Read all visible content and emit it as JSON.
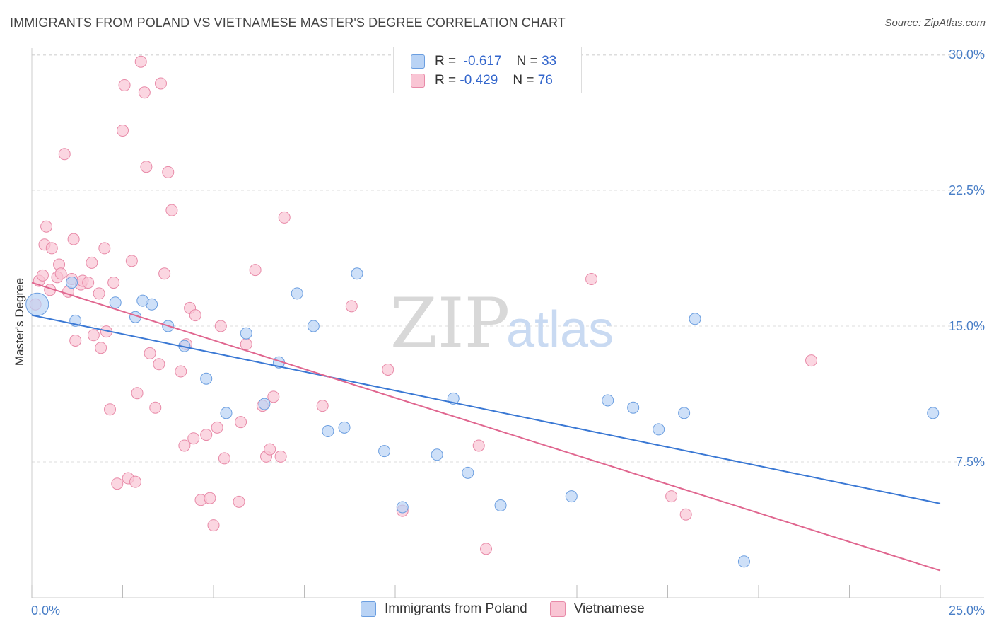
{
  "title": "IMMIGRANTS FROM POLAND VS VIETNAMESE MASTER'S DEGREE CORRELATION CHART",
  "source": "Source: ZipAtlas.com",
  "legend": {
    "series1": {
      "r_label": "R =",
      "r_value": "-0.617",
      "n_label": "N =",
      "n_value": "33"
    },
    "series2": {
      "r_label": "R =",
      "r_value": "-0.429",
      "n_label": "N =",
      "n_value": "76"
    }
  },
  "colors": {
    "series1_fill": "#b9d3f5",
    "series1_stroke": "#6b9ee0",
    "series1_line": "#3a78d4",
    "series2_fill": "#f9c5d4",
    "series2_stroke": "#e88aa8",
    "series2_line": "#e0668f",
    "grid": "#dddddd",
    "axis_text": "#4a7fc7"
  },
  "watermark": {
    "zip": "ZIP",
    "atlas": "atlas"
  },
  "chart_data": {
    "type": "scatter",
    "title": "IMMIGRANTS FROM POLAND VS VIETNAMESE MASTER'S DEGREE CORRELATION CHART",
    "xlabel": "",
    "ylabel": "Master's Degree",
    "xlim": [
      0,
      25
    ],
    "ylim": [
      0,
      30.8
    ],
    "x_tick_labels": [
      "0.0%",
      "25.0%"
    ],
    "y_ticks": [
      7.5,
      15.0,
      22.5,
      30.0
    ],
    "y_tick_labels": [
      "7.5%",
      "15.0%",
      "22.5%",
      "30.0%"
    ],
    "grid": true,
    "legend_position": "bottom",
    "series": [
      {
        "name": "Immigrants from Poland",
        "points": [
          [
            0.15,
            16.2
          ],
          [
            1.1,
            17.4
          ],
          [
            1.2,
            15.3
          ],
          [
            2.3,
            16.3
          ],
          [
            2.85,
            15.5
          ],
          [
            3.3,
            16.2
          ],
          [
            3.75,
            15.0
          ],
          [
            4.2,
            13.9
          ],
          [
            4.8,
            12.1
          ],
          [
            5.35,
            10.2
          ],
          [
            5.9,
            14.6
          ],
          [
            6.4,
            10.7
          ],
          [
            6.8,
            13.0
          ],
          [
            7.3,
            16.8
          ],
          [
            7.75,
            15.0
          ],
          [
            8.15,
            9.2
          ],
          [
            8.6,
            9.4
          ],
          [
            8.95,
            17.9
          ],
          [
            9.7,
            8.1
          ],
          [
            10.2,
            5.0
          ],
          [
            11.15,
            7.9
          ],
          [
            11.6,
            11.0
          ],
          [
            12.0,
            6.9
          ],
          [
            12.9,
            5.1
          ],
          [
            14.85,
            5.6
          ],
          [
            15.85,
            10.9
          ],
          [
            16.55,
            10.5
          ],
          [
            17.25,
            9.3
          ],
          [
            17.95,
            10.2
          ],
          [
            18.25,
            15.4
          ],
          [
            19.6,
            2.0
          ],
          [
            24.8,
            10.2
          ],
          [
            3.05,
            16.4
          ]
        ]
      },
      {
        "name": "Vietnamese",
        "points": [
          [
            0.1,
            16.2
          ],
          [
            0.2,
            17.5
          ],
          [
            0.3,
            17.8
          ],
          [
            0.35,
            19.5
          ],
          [
            0.4,
            20.5
          ],
          [
            0.5,
            17.0
          ],
          [
            0.55,
            19.3
          ],
          [
            0.7,
            17.7
          ],
          [
            0.75,
            18.4
          ],
          [
            0.8,
            17.9
          ],
          [
            0.9,
            24.5
          ],
          [
            1.0,
            16.9
          ],
          [
            1.1,
            17.6
          ],
          [
            1.15,
            19.8
          ],
          [
            1.2,
            14.2
          ],
          [
            1.35,
            17.3
          ],
          [
            1.4,
            17.5
          ],
          [
            1.55,
            17.4
          ],
          [
            1.65,
            18.5
          ],
          [
            1.7,
            14.5
          ],
          [
            1.85,
            16.8
          ],
          [
            1.9,
            13.8
          ],
          [
            2.0,
            19.3
          ],
          [
            2.05,
            14.7
          ],
          [
            2.15,
            10.4
          ],
          [
            2.25,
            17.4
          ],
          [
            2.35,
            6.3
          ],
          [
            2.5,
            25.8
          ],
          [
            2.55,
            28.3
          ],
          [
            2.65,
            6.6
          ],
          [
            2.75,
            18.6
          ],
          [
            2.85,
            6.4
          ],
          [
            2.9,
            11.3
          ],
          [
            3.0,
            29.6
          ],
          [
            3.1,
            27.9
          ],
          [
            3.15,
            23.8
          ],
          [
            3.25,
            13.5
          ],
          [
            3.4,
            10.5
          ],
          [
            3.5,
            12.9
          ],
          [
            3.55,
            28.4
          ],
          [
            3.65,
            17.9
          ],
          [
            3.75,
            23.5
          ],
          [
            3.85,
            21.4
          ],
          [
            4.1,
            12.5
          ],
          [
            4.2,
            8.4
          ],
          [
            4.25,
            14.0
          ],
          [
            4.35,
            16.0
          ],
          [
            4.45,
            8.8
          ],
          [
            4.5,
            15.6
          ],
          [
            4.65,
            5.4
          ],
          [
            4.8,
            9.0
          ],
          [
            4.9,
            5.5
          ],
          [
            5.0,
            4.0
          ],
          [
            5.1,
            9.4
          ],
          [
            5.2,
            15.0
          ],
          [
            5.3,
            7.7
          ],
          [
            5.7,
            5.3
          ],
          [
            5.75,
            9.7
          ],
          [
            5.9,
            14.0
          ],
          [
            6.15,
            18.1
          ],
          [
            6.35,
            10.6
          ],
          [
            6.45,
            7.8
          ],
          [
            6.55,
            8.2
          ],
          [
            6.65,
            11.1
          ],
          [
            6.85,
            7.8
          ],
          [
            6.95,
            21.0
          ],
          [
            8.0,
            10.6
          ],
          [
            8.8,
            16.1
          ],
          [
            9.8,
            12.6
          ],
          [
            10.2,
            4.8
          ],
          [
            12.3,
            8.4
          ],
          [
            12.5,
            2.7
          ],
          [
            15.4,
            17.6
          ],
          [
            17.6,
            5.6
          ],
          [
            18.0,
            4.6
          ],
          [
            21.45,
            13.1
          ]
        ]
      }
    ],
    "trendlines": [
      {
        "series": "Immigrants from Poland",
        "x": [
          0,
          25
        ],
        "y": [
          15.6,
          5.2
        ]
      },
      {
        "series": "Vietnamese",
        "x": [
          0,
          25
        ],
        "y": [
          17.4,
          1.5
        ]
      }
    ]
  }
}
